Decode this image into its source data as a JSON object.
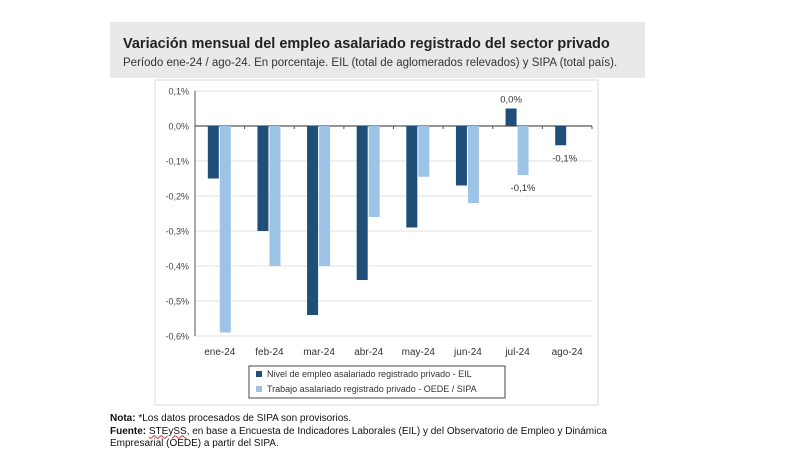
{
  "header": {
    "title": "Variación mensual del empleo asalariado registrado del sector privado",
    "subtitle": "Período ene-24 / ago-24. En porcentaje. EIL (total de aglomerados relevados) y SIPA (total país)."
  },
  "chart_data": {
    "type": "bar",
    "categories": [
      "ene-24",
      "feb-24",
      "mar-24",
      "abr-24",
      "may-24",
      "jun-24",
      "jul-24",
      "ago-24"
    ],
    "ylim": [
      -0.6,
      0.1
    ],
    "yticks": [
      "0,1%",
      "0,0%",
      "-0,1%",
      "-0,2%",
      "-0,3%",
      "-0,4%",
      "-0,5%",
      "-0,6%"
    ],
    "ytick_values": [
      0.1,
      0,
      -0.1,
      -0.2,
      -0.3,
      -0.4,
      -0.5,
      -0.6
    ],
    "grid": true,
    "legend": "bottom",
    "series": [
      {
        "name": "Nivel de empleo asalariado registrado privado - EIL",
        "color": "#1f4e79",
        "values": [
          -0.15,
          -0.3,
          -0.54,
          -0.44,
          -0.29,
          -0.17,
          0.05,
          -0.055
        ],
        "labels": [
          null,
          null,
          null,
          null,
          null,
          null,
          "0,0%",
          "-0,1%"
        ]
      },
      {
        "name": "Trabajo asalariado registrado privado - OEDE / SIPA",
        "color": "#9dc3e6",
        "values": [
          -0.59,
          -0.4,
          -0.4,
          -0.26,
          -0.145,
          -0.22,
          -0.14,
          null
        ],
        "labels": [
          null,
          null,
          null,
          null,
          null,
          null,
          "-0,1%",
          null
        ]
      }
    ]
  },
  "notes": {
    "nota_label": "Nota:",
    "nota_text": " *Los datos procesados de SIPA son provisorios.",
    "fuente_label": "Fuente:",
    "fuente_org": "STEySS",
    "fuente_text": ", en base a Encuesta de Indicadores Laborales (EIL) y del Observatorio de Empleo y Dinámica Empresarial (OEDE) a partir del SIPA."
  }
}
